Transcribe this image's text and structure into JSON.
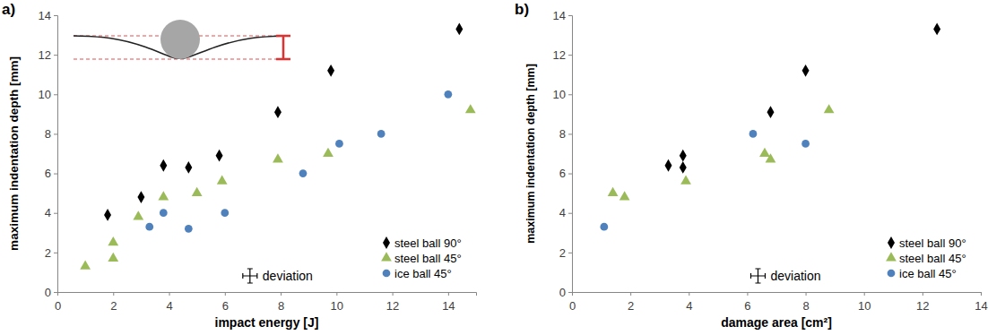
{
  "chart_data": [
    {
      "type": "scatter",
      "title": "a)",
      "x_label": "impact energy [J]",
      "y_label": "maximum indentation depth [mm]",
      "xlim": [
        0,
        15
      ],
      "xticks": [
        0,
        2,
        4,
        6,
        8,
        10,
        12,
        14
      ],
      "ylim": [
        0,
        14
      ],
      "yticks": [
        0,
        2,
        4,
        6,
        8,
        10,
        12,
        14
      ],
      "legend": "bottom-right",
      "grid": false,
      "annotations": [
        "deviation"
      ],
      "series": [
        {
          "name": "steel ball 90°",
          "color": "#000000",
          "marker": "diamond",
          "x": [
            1.8,
            3.0,
            3.8,
            4.7,
            5.8,
            7.9,
            9.8,
            14.4
          ],
          "values": [
            3.9,
            4.8,
            6.4,
            6.3,
            6.9,
            9.1,
            11.2,
            13.3
          ]
        },
        {
          "name": "steel ball 45°",
          "color": "#9bbb59",
          "marker": "triangle",
          "x": [
            1.0,
            2.0,
            2.0,
            2.9,
            3.8,
            5.0,
            5.9,
            7.9,
            9.7,
            14.8
          ],
          "values": [
            1.3,
            1.7,
            2.5,
            3.8,
            4.8,
            5.0,
            5.6,
            6.7,
            7.0,
            9.2
          ]
        },
        {
          "name": "ice ball 45°",
          "color": "#4f81bd",
          "marker": "circle",
          "x": [
            3.3,
            3.8,
            4.7,
            6.0,
            8.8,
            10.1,
            11.6,
            14.0
          ],
          "values": [
            3.3,
            4.0,
            3.2,
            4.0,
            6.0,
            7.5,
            8.0,
            10.0
          ]
        }
      ]
    },
    {
      "type": "scatter",
      "title": "b)",
      "x_label": "damage area [cm²]",
      "y_label": "maximum indentation depth [mm]",
      "xlim": [
        0,
        14
      ],
      "xticks": [
        0,
        2,
        4,
        6,
        8,
        10,
        12,
        14
      ],
      "ylim": [
        0,
        14
      ],
      "yticks": [
        0,
        2,
        4,
        6,
        8,
        10,
        12,
        14
      ],
      "legend": "bottom-right",
      "grid": false,
      "annotations": [
        "deviation"
      ],
      "series": [
        {
          "name": "steel ball 90°",
          "color": "#000000",
          "marker": "diamond",
          "x": [
            3.3,
            3.8,
            3.8,
            6.8,
            8.0,
            12.5
          ],
          "values": [
            6.4,
            6.9,
            6.3,
            9.1,
            11.2,
            13.3
          ]
        },
        {
          "name": "steel ball 45°",
          "color": "#9bbb59",
          "marker": "triangle",
          "x": [
            1.4,
            1.8,
            3.9,
            6.6,
            6.8,
            8.8
          ],
          "values": [
            5.0,
            4.8,
            5.6,
            7.0,
            6.7,
            9.2
          ]
        },
        {
          "name": "ice ball 45°",
          "color": "#4f81bd",
          "marker": "circle",
          "x": [
            1.1,
            6.2,
            8.0
          ],
          "values": [
            3.3,
            8.0,
            7.5
          ]
        }
      ]
    }
  ]
}
